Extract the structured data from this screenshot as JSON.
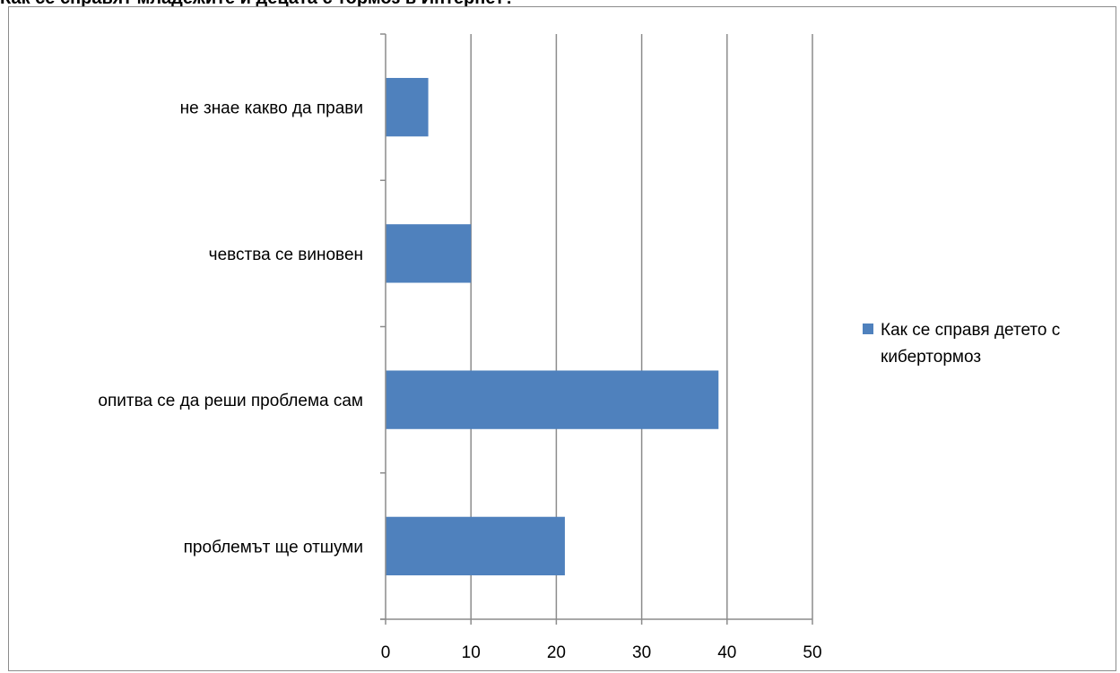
{
  "heading": "Как се справят младежите и децата с тормоз в Интернет?",
  "chart_data": {
    "type": "bar",
    "orientation": "horizontal",
    "title": "Как се справят младежите и децата с тормоз в Интернет?",
    "categories": [
      "проблемът ще отшуми",
      "опитва се да реши проблема сам",
      "чевства се виновен",
      "не знае какво да прави"
    ],
    "series": [
      {
        "name": "Как се справя детето с кибертормоз",
        "values": [
          21,
          39,
          10,
          5
        ],
        "color": "#4f81bd"
      }
    ],
    "xlim": [
      0,
      50
    ],
    "xticks": [
      0,
      10,
      20,
      30,
      40,
      50
    ],
    "xlabel": "",
    "ylabel": "",
    "grid": "vertical",
    "legend": "right",
    "legend_lines": [
      "Как се справя детето с",
      "кибертормоз"
    ]
  }
}
